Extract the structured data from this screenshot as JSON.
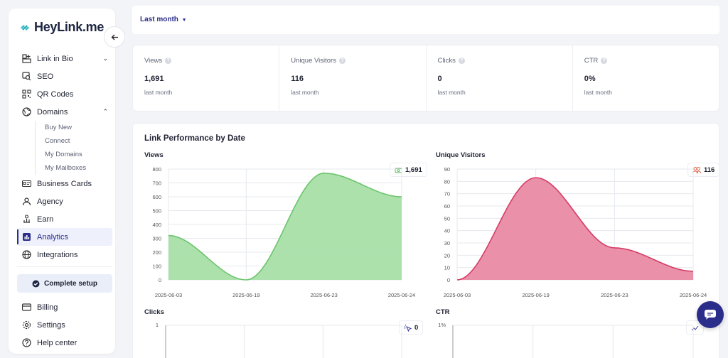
{
  "brand": {
    "name": "HeyLink.me"
  },
  "sidebar": {
    "items": [
      {
        "label": "Link in Bio",
        "icon": "link-in-bio-icon",
        "chevron": "⌄"
      },
      {
        "label": "SEO",
        "icon": "seo-icon"
      },
      {
        "label": "QR Codes",
        "icon": "qr-code-icon"
      },
      {
        "label": "Domains",
        "icon": "globe-icon",
        "chevron": "⌃"
      }
    ],
    "domain_sub": [
      "Buy New",
      "Connect",
      "My Domains",
      "My Mailboxes"
    ],
    "items2": [
      {
        "label": "Business Cards",
        "icon": "business-card-icon"
      },
      {
        "label": "Agency",
        "icon": "agency-icon"
      },
      {
        "label": "Earn",
        "icon": "earn-icon"
      },
      {
        "label": "Analytics",
        "icon": "analytics-icon",
        "active": true
      },
      {
        "label": "Integrations",
        "icon": "integrations-icon"
      }
    ],
    "setup_label": "Complete setup",
    "bottom": [
      {
        "label": "Billing",
        "icon": "billing-icon"
      },
      {
        "label": "Settings",
        "icon": "settings-icon"
      },
      {
        "label": "Help center",
        "icon": "help-icon"
      }
    ]
  },
  "filter": {
    "period": "Last month"
  },
  "stats": [
    {
      "label": "Views",
      "value": "1,691",
      "sub": "last month"
    },
    {
      "label": "Unique Visitors",
      "value": "116",
      "sub": "last month"
    },
    {
      "label": "Clicks",
      "value": "0",
      "sub": "last month"
    },
    {
      "label": "CTR",
      "value": "0%",
      "sub": "last month"
    }
  ],
  "performance": {
    "title": "Link Performance by Date"
  },
  "chart_data": [
    {
      "type": "area",
      "title": "Views",
      "badge": "1,691",
      "x": [
        "2025-06-03",
        "2025-06-19",
        "2025-06-23",
        "2025-06-24"
      ],
      "values": [
        320,
        0,
        770,
        600
      ],
      "ylim": [
        0,
        800
      ],
      "yticks": [
        0,
        100,
        200,
        300,
        400,
        500,
        600,
        700,
        800
      ],
      "color": "#6cc46c",
      "fill": "#a8dfa8"
    },
    {
      "type": "area",
      "title": "Unique Visitors",
      "badge": "116",
      "x": [
        "2025-06-03",
        "2025-06-19",
        "2025-06-23",
        "2025-06-24"
      ],
      "values": [
        0,
        83,
        26,
        7
      ],
      "ylim": [
        0,
        90
      ],
      "yticks": [
        0,
        10,
        20,
        30,
        40,
        50,
        60,
        70,
        80,
        90
      ],
      "color": "#d63c66",
      "fill": "#e98aa4"
    },
    {
      "type": "area",
      "title": "Clicks",
      "badge": "0",
      "yticks_label": "1"
    },
    {
      "type": "area",
      "title": "CTR",
      "yticks_label": "1%"
    }
  ]
}
